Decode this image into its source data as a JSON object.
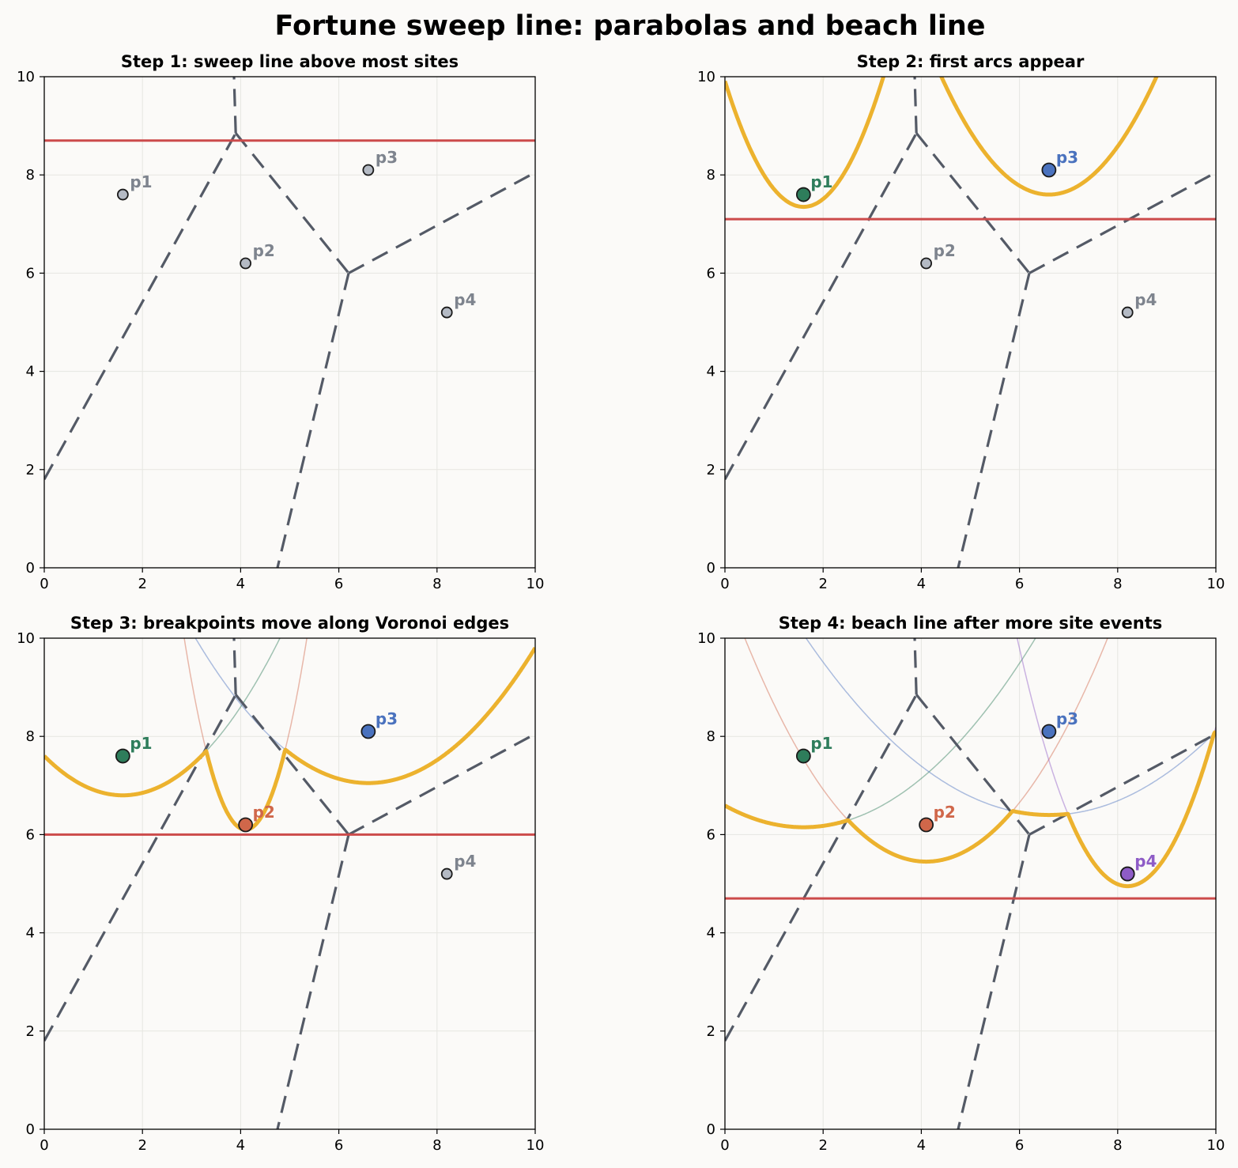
{
  "suptitle": "Fortune sweep line: parabolas and beach line",
  "colors": {
    "background": "#fbfaf8",
    "beach_line": "#ecb22e",
    "sweep_line": "#cc4b4b",
    "voronoi": "#545a66",
    "grid": "#e6e6e1",
    "inactive_site": "#b4bac4",
    "inactive_label": "#7e848e",
    "site_colors": {
      "p1": "#2e7d5b",
      "p2": "#d0674a",
      "p3": "#4a72be",
      "p4": "#8e5cc6"
    }
  },
  "chart_data": [
    {
      "type": "line",
      "title": "Step 1: sweep line above most sites",
      "xlim": [
        0,
        10
      ],
      "ylim": [
        0,
        10
      ],
      "xticks": [
        "0",
        "2",
        "4",
        "6",
        "8",
        "10"
      ],
      "yticks": [
        "0",
        "2",
        "4",
        "6",
        "8",
        "10"
      ],
      "grid": true,
      "sweep_y": 8.7,
      "sites": [
        {
          "name": "p1",
          "x": 1.6,
          "y": 7.6,
          "active": false
        },
        {
          "name": "p2",
          "x": 4.1,
          "y": 6.2,
          "active": false
        },
        {
          "name": "p3",
          "x": 6.6,
          "y": 8.1,
          "active": false
        },
        {
          "name": "p4",
          "x": 8.2,
          "y": 5.2,
          "active": false
        }
      ],
      "faint_parabolas": [],
      "beach_line_sites": [],
      "voronoi_edges": [
        [
          [
            0,
            1.8
          ],
          [
            3.9,
            8.85
          ]
        ],
        [
          [
            3.9,
            8.85
          ],
          [
            3.85,
            10.5
          ]
        ],
        [
          [
            3.9,
            8.85
          ],
          [
            6.2,
            6.0
          ]
        ],
        [
          [
            6.2,
            6.0
          ],
          [
            10,
            8.05
          ]
        ],
        [
          [
            6.2,
            6.0
          ],
          [
            4.75,
            0
          ]
        ]
      ]
    },
    {
      "type": "line",
      "title": "Step 2: first arcs appear",
      "xlim": [
        0,
        10
      ],
      "ylim": [
        0,
        10
      ],
      "xticks": [
        "0",
        "2",
        "4",
        "6",
        "8",
        "10"
      ],
      "yticks": [
        "0",
        "2",
        "4",
        "6",
        "8",
        "10"
      ],
      "grid": true,
      "sweep_y": 7.1,
      "sites": [
        {
          "name": "p1",
          "x": 1.6,
          "y": 7.6,
          "active": true
        },
        {
          "name": "p2",
          "x": 4.1,
          "y": 6.2,
          "active": false
        },
        {
          "name": "p3",
          "x": 6.6,
          "y": 8.1,
          "active": true
        },
        {
          "name": "p4",
          "x": 8.2,
          "y": 5.2,
          "active": false
        }
      ],
      "faint_parabolas": [],
      "beach_line_sites": [
        "p1",
        "p3"
      ],
      "beach_line_mode": "separate",
      "voronoi_edges": [
        [
          [
            0,
            1.8
          ],
          [
            3.9,
            8.85
          ]
        ],
        [
          [
            3.9,
            8.85
          ],
          [
            3.85,
            10.5
          ]
        ],
        [
          [
            3.9,
            8.85
          ],
          [
            6.2,
            6.0
          ]
        ],
        [
          [
            6.2,
            6.0
          ],
          [
            10,
            8.05
          ]
        ],
        [
          [
            6.2,
            6.0
          ],
          [
            4.75,
            0
          ]
        ]
      ]
    },
    {
      "type": "line",
      "title": "Step 3: breakpoints move along Voronoi edges",
      "xlim": [
        0,
        10
      ],
      "ylim": [
        0,
        10
      ],
      "xticks": [
        "0",
        "2",
        "4",
        "6",
        "8",
        "10"
      ],
      "yticks": [
        "0",
        "2",
        "4",
        "6",
        "8",
        "10"
      ],
      "grid": true,
      "sweep_y": 6.0,
      "sites": [
        {
          "name": "p1",
          "x": 1.6,
          "y": 7.6,
          "active": true
        },
        {
          "name": "p2",
          "x": 4.1,
          "y": 6.2,
          "active": true
        },
        {
          "name": "p3",
          "x": 6.6,
          "y": 8.1,
          "active": true
        },
        {
          "name": "p4",
          "x": 8.2,
          "y": 5.2,
          "active": false
        }
      ],
      "faint_parabolas": [
        "p1",
        "p2",
        "p3"
      ],
      "beach_line_sites": [
        "p1",
        "p2",
        "p3"
      ],
      "beach_line_mode": "envelope",
      "voronoi_edges": [
        [
          [
            0,
            1.8
          ],
          [
            3.9,
            8.85
          ]
        ],
        [
          [
            3.9,
            8.85
          ],
          [
            3.85,
            10.5
          ]
        ],
        [
          [
            3.9,
            8.85
          ],
          [
            6.2,
            6.0
          ]
        ],
        [
          [
            6.2,
            6.0
          ],
          [
            10,
            8.05
          ]
        ],
        [
          [
            6.2,
            6.0
          ],
          [
            4.75,
            0
          ]
        ]
      ]
    },
    {
      "type": "line",
      "title": "Step 4: beach line after more site events",
      "xlim": [
        0,
        10
      ],
      "ylim": [
        0,
        10
      ],
      "xticks": [
        "0",
        "2",
        "4",
        "6",
        "8",
        "10"
      ],
      "yticks": [
        "0",
        "2",
        "4",
        "6",
        "8",
        "10"
      ],
      "grid": true,
      "sweep_y": 4.7,
      "sites": [
        {
          "name": "p1",
          "x": 1.6,
          "y": 7.6,
          "active": true
        },
        {
          "name": "p2",
          "x": 4.1,
          "y": 6.2,
          "active": true
        },
        {
          "name": "p3",
          "x": 6.6,
          "y": 8.1,
          "active": true
        },
        {
          "name": "p4",
          "x": 8.2,
          "y": 5.2,
          "active": true
        }
      ],
      "faint_parabolas": [
        "p1",
        "p2",
        "p3",
        "p4"
      ],
      "beach_line_sites": [
        "p1",
        "p2",
        "p3",
        "p4"
      ],
      "beach_line_mode": "envelope",
      "voronoi_edges": [
        [
          [
            0,
            1.8
          ],
          [
            3.9,
            8.85
          ]
        ],
        [
          [
            3.9,
            8.85
          ],
          [
            3.85,
            10.5
          ]
        ],
        [
          [
            3.9,
            8.85
          ],
          [
            6.2,
            6.0
          ]
        ],
        [
          [
            6.2,
            6.0
          ],
          [
            10,
            8.05
          ]
        ],
        [
          [
            6.2,
            6.0
          ],
          [
            4.75,
            0
          ]
        ]
      ]
    }
  ]
}
